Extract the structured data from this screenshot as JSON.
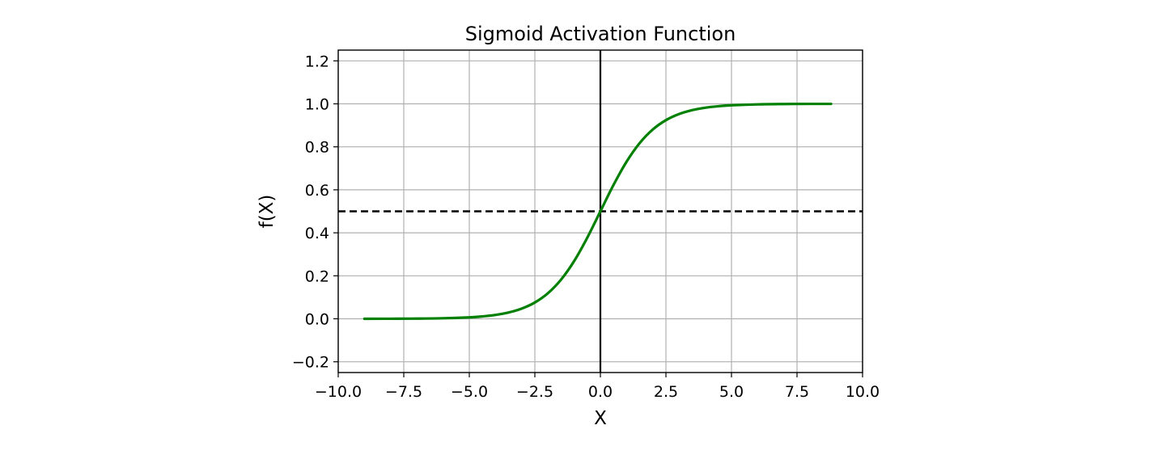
{
  "chart_data": {
    "type": "line",
    "title": "Sigmoid Activation Function",
    "xlabel": "X",
    "ylabel": "f(X)",
    "xlim": [
      -10.0,
      10.0
    ],
    "ylim": [
      -0.25,
      1.25
    ],
    "grid": true,
    "x_ticks": [
      -10.0,
      -7.5,
      -5.0,
      -2.5,
      0.0,
      2.5,
      5.0,
      7.5,
      10.0
    ],
    "x_tick_labels": [
      "−10.0",
      "−7.5",
      "−5.0",
      "−2.5",
      "0.0",
      "2.5",
      "5.0",
      "7.5",
      "10.0"
    ],
    "y_ticks": [
      -0.2,
      0.0,
      0.2,
      0.4,
      0.6,
      0.8,
      1.0,
      1.2
    ],
    "y_tick_labels": [
      "−0.2",
      "0.0",
      "0.2",
      "0.4",
      "0.6",
      "0.8",
      "1.0",
      "1.2"
    ],
    "series": [
      {
        "color": "#008000",
        "style": "solid",
        "x": [
          -9.0,
          -8.0,
          -7.0,
          -6.0,
          -5.0,
          -4.5,
          -4.0,
          -3.5,
          -3.0,
          -2.5,
          -2.0,
          -1.5,
          -1.0,
          -0.5,
          0.0,
          0.5,
          1.0,
          1.5,
          2.0,
          2.5,
          3.0,
          3.5,
          4.0,
          4.5,
          5.0,
          6.0,
          7.0,
          8.0,
          8.8
        ],
        "y": [
          0.0001,
          0.0003,
          0.0009,
          0.0025,
          0.0067,
          0.011,
          0.018,
          0.0293,
          0.0474,
          0.0759,
          0.1192,
          0.1824,
          0.2689,
          0.3775,
          0.5,
          0.6225,
          0.7311,
          0.8176,
          0.8808,
          0.9241,
          0.9526,
          0.9707,
          0.982,
          0.989,
          0.9933,
          0.9975,
          0.9991,
          0.9997,
          0.9998
        ]
      }
    ],
    "reference_lines": [
      {
        "orientation": "horizontal",
        "value": 0.5,
        "color": "#000000",
        "style": "dashed"
      },
      {
        "orientation": "vertical",
        "value": 0.0,
        "color": "#000000",
        "style": "solid"
      }
    ]
  }
}
